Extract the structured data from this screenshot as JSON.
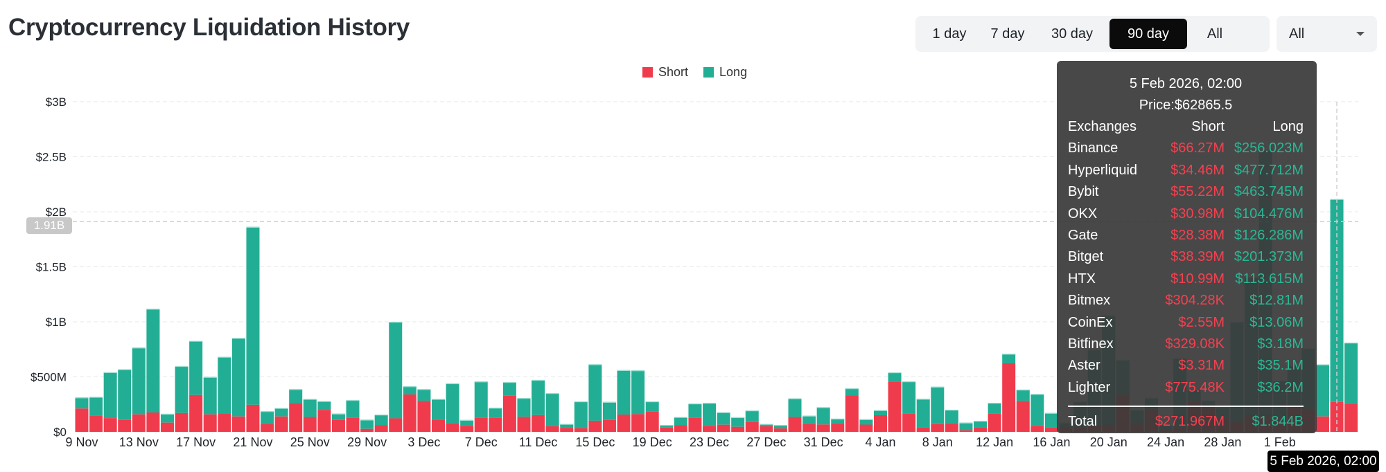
{
  "title": "Cryptocurrency Liquidation History",
  "range_buttons": [
    {
      "label": "1 day",
      "active": false
    },
    {
      "label": "7 day",
      "active": false
    },
    {
      "label": "30 day",
      "active": false
    },
    {
      "label": "90 day",
      "active": true
    },
    {
      "label": "All",
      "active": false
    }
  ],
  "exchange_select": {
    "value": "All"
  },
  "crosshair": {
    "y_value_label": "1.91B",
    "x_label": "5 Feb 2026, 02:00"
  },
  "tooltip": {
    "date": "5 Feb 2026, 02:00",
    "price": "Price:$62865.5",
    "headers": [
      "Exchanges",
      "Short",
      "Long"
    ],
    "rows": [
      {
        "exchange": "Binance",
        "short": "$66.27M",
        "long": "$256.023M"
      },
      {
        "exchange": "Hyperliquid",
        "short": "$34.46M",
        "long": "$477.712M"
      },
      {
        "exchange": "Bybit",
        "short": "$55.22M",
        "long": "$463.745M"
      },
      {
        "exchange": "OKX",
        "short": "$30.98M",
        "long": "$104.476M"
      },
      {
        "exchange": "Gate",
        "short": "$28.38M",
        "long": "$126.286M"
      },
      {
        "exchange": "Bitget",
        "short": "$38.39M",
        "long": "$201.373M"
      },
      {
        "exchange": "HTX",
        "short": "$10.99M",
        "long": "$113.615M"
      },
      {
        "exchange": "Bitmex",
        "short": "$304.28K",
        "long": "$12.81M"
      },
      {
        "exchange": "CoinEx",
        "short": "$2.55M",
        "long": "$13.06M"
      },
      {
        "exchange": "Bitfinex",
        "short": "$329.08K",
        "long": "$3.18M"
      },
      {
        "exchange": "Aster",
        "short": "$3.31M",
        "long": "$35.1M"
      },
      {
        "exchange": "Lighter",
        "short": "$775.48K",
        "long": "$36.2M"
      }
    ],
    "total": {
      "label": "Total",
      "short": "$271.967M",
      "long": "$1.844B"
    }
  },
  "chart_data": {
    "type": "bar",
    "stacked": true,
    "legend": {
      "position": "top-center",
      "entries": [
        "Short",
        "Long"
      ]
    },
    "colors": {
      "Short": "#f03b4c",
      "Long": "#22ae94"
    },
    "y_unit": "USD billions",
    "ylim": [
      0,
      3
    ],
    "y_ticks": [
      {
        "v": 0,
        "label": "$0"
      },
      {
        "v": 0.5,
        "label": "$500M"
      },
      {
        "v": 1,
        "label": "$1B"
      },
      {
        "v": 1.5,
        "label": "$1.5B"
      },
      {
        "v": 2,
        "label": "$2B"
      },
      {
        "v": 2.5,
        "label": "$2.5B"
      },
      {
        "v": 3,
        "label": "$3B"
      }
    ],
    "grid": true,
    "x_ticks": [
      "9 Nov",
      "13 Nov",
      "17 Nov",
      "21 Nov",
      "25 Nov",
      "29 Nov",
      "3 Dec",
      "7 Dec",
      "11 Dec",
      "15 Dec",
      "19 Dec",
      "23 Dec",
      "27 Dec",
      "31 Dec",
      "4 Jan",
      "8 Jan",
      "12 Jan",
      "16 Jan",
      "20 Jan",
      "24 Jan",
      "28 Jan",
      "1 Feb"
    ],
    "x_tick_every": 4,
    "first_date": "9 Nov",
    "last_date": "6 Feb",
    "highlighted_date": "5 Feb 2026",
    "series": [
      {
        "name": "Short",
        "values": [
          0.212,
          0.149,
          0.125,
          0.108,
          0.159,
          0.176,
          0.084,
          0.171,
          0.335,
          0.159,
          0.169,
          0.14,
          0.246,
          0.072,
          0.14,
          0.258,
          0.135,
          0.2,
          0.108,
          0.128,
          0.027,
          0.06,
          0.123,
          0.34,
          0.282,
          0.111,
          0.08,
          0.055,
          0.128,
          0.128,
          0.328,
          0.137,
          0.152,
          0.051,
          0.036,
          0.034,
          0.101,
          0.108,
          0.157,
          0.161,
          0.183,
          0.039,
          0.06,
          0.128,
          0.055,
          0.065,
          0.046,
          0.089,
          0.051,
          0.031,
          0.135,
          0.072,
          0.067,
          0.075,
          0.33,
          0.066,
          0.151,
          0.453,
          0.168,
          0.042,
          0.071,
          0.075,
          0.015,
          0.042,
          0.168,
          0.623,
          0.281,
          0.055,
          0.042,
          0.038,
          0.038,
          0.06,
          0.06,
          0.336,
          0.068,
          0.203,
          0.02,
          0.038,
          0.281,
          0.218,
          0.128,
          0.095,
          0.151,
          0.151,
          0.128,
          0.241,
          0.203,
          0.14,
          0.272,
          0.257
        ]
      },
      {
        "name": "Long",
        "values": [
          0.101,
          0.169,
          0.417,
          0.461,
          0.607,
          0.942,
          0.08,
          0.427,
          0.492,
          0.34,
          0.513,
          0.713,
          1.617,
          0.116,
          0.077,
          0.13,
          0.164,
          0.08,
          0.058,
          0.161,
          0.084,
          0.097,
          0.877,
          0.074,
          0.106,
          0.188,
          0.361,
          0.053,
          0.33,
          0.091,
          0.125,
          0.171,
          0.32,
          0.301,
          0.036,
          0.243,
          0.513,
          0.164,
          0.404,
          0.398,
          0.094,
          0.024,
          0.075,
          0.13,
          0.208,
          0.113,
          0.087,
          0.106,
          0.021,
          0.032,
          0.169,
          0.075,
          0.157,
          0.045,
          0.066,
          0.049,
          0.046,
          0.088,
          0.291,
          0.258,
          0.339,
          0.126,
          0.069,
          0.058,
          0.096,
          0.086,
          0.103,
          0.289,
          0.13,
          0.045,
          0.237,
          0.688,
          0.996,
          0.317,
          0.132,
          0.106,
          0.04,
          0.631,
          0.106,
          0.068,
          0.095,
          0.905,
          1.254,
          2.41,
          0.338,
          0.36,
          0.556,
          0.473,
          1.844,
          0.554
        ]
      }
    ]
  }
}
